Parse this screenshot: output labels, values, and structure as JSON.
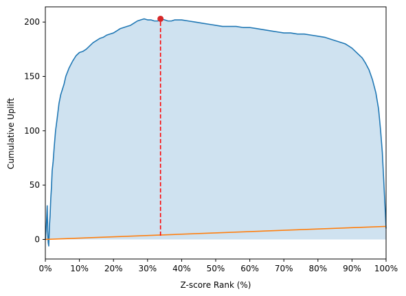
{
  "chart_data": {
    "type": "area",
    "xlabel": "Z-score Rank (%)",
    "ylabel": "Cumulative Uplift",
    "xlim": [
      0,
      100
    ],
    "ylim": [
      -18,
      214
    ],
    "grid": false,
    "x_ticks": [
      0,
      10,
      20,
      30,
      40,
      50,
      60,
      70,
      80,
      90,
      100
    ],
    "x_tick_labels": [
      "0%",
      "10%",
      "20%",
      "30%",
      "40%",
      "50%",
      "60%",
      "70%",
      "80%",
      "90%",
      "100%"
    ],
    "y_ticks": [
      0,
      50,
      100,
      150,
      200
    ],
    "y_tick_labels": [
      "0",
      "50",
      "100",
      "150",
      "200"
    ],
    "series": [
      {
        "color": "#1f77b4",
        "fill_color": "#cfe2f0",
        "points": [
          [
            0,
            0
          ],
          [
            0.2,
            8
          ],
          [
            0.4,
            20
          ],
          [
            0.55,
            31
          ],
          [
            0.7,
            8
          ],
          [
            0.85,
            -3
          ],
          [
            1.0,
            -6
          ],
          [
            1.2,
            12
          ],
          [
            1.4,
            22
          ],
          [
            1.6,
            38
          ],
          [
            1.8,
            48
          ],
          [
            2.0,
            63
          ],
          [
            2.3,
            72
          ],
          [
            2.6,
            85
          ],
          [
            3.0,
            100
          ],
          [
            3.5,
            112
          ],
          [
            4.0,
            125
          ],
          [
            4.5,
            133
          ],
          [
            5.0,
            138
          ],
          [
            5.5,
            143
          ],
          [
            6.0,
            150
          ],
          [
            7.0,
            158
          ],
          [
            8.0,
            164
          ],
          [
            9.0,
            169
          ],
          [
            10.0,
            172
          ],
          [
            11.0,
            173
          ],
          [
            12.0,
            175
          ],
          [
            13.0,
            178
          ],
          [
            14.0,
            181
          ],
          [
            15.0,
            183
          ],
          [
            16.0,
            185
          ],
          [
            17.0,
            186
          ],
          [
            18.0,
            188
          ],
          [
            19.0,
            189
          ],
          [
            20.0,
            190
          ],
          [
            21.0,
            192
          ],
          [
            22.0,
            194
          ],
          [
            23.0,
            195
          ],
          [
            24.0,
            196
          ],
          [
            25.0,
            197
          ],
          [
            26.0,
            199
          ],
          [
            27.0,
            201
          ],
          [
            28.0,
            202
          ],
          [
            29.0,
            203
          ],
          [
            30.0,
            202
          ],
          [
            31.0,
            202
          ],
          [
            32.0,
            201
          ],
          [
            33.0,
            201
          ],
          [
            33.8,
            203
          ],
          [
            35.0,
            202
          ],
          [
            36.0,
            201
          ],
          [
            37.0,
            201
          ],
          [
            38.0,
            202
          ],
          [
            39.0,
            202
          ],
          [
            40.0,
            202
          ],
          [
            42.0,
            201
          ],
          [
            44.0,
            200
          ],
          [
            46.0,
            199
          ],
          [
            48.0,
            198
          ],
          [
            50.0,
            197
          ],
          [
            52.0,
            196
          ],
          [
            54.0,
            196
          ],
          [
            56.0,
            196
          ],
          [
            58.0,
            195
          ],
          [
            60.0,
            195
          ],
          [
            62.0,
            194
          ],
          [
            64.0,
            193
          ],
          [
            66.0,
            192
          ],
          [
            68.0,
            191
          ],
          [
            70.0,
            190
          ],
          [
            72.0,
            190
          ],
          [
            74.0,
            189
          ],
          [
            76.0,
            189
          ],
          [
            78.0,
            188
          ],
          [
            80.0,
            187
          ],
          [
            82.0,
            186
          ],
          [
            84.0,
            184
          ],
          [
            86.0,
            182
          ],
          [
            87.0,
            181
          ],
          [
            88.0,
            180
          ],
          [
            89.0,
            178
          ],
          [
            90.0,
            176
          ],
          [
            91.0,
            173
          ],
          [
            92.0,
            170
          ],
          [
            93.0,
            167
          ],
          [
            94.0,
            162
          ],
          [
            95.0,
            156
          ],
          [
            96.0,
            147
          ],
          [
            97.0,
            135
          ],
          [
            97.8,
            120
          ],
          [
            98.4,
            100
          ],
          [
            98.9,
            80
          ],
          [
            99.3,
            55
          ],
          [
            99.7,
            30
          ],
          [
            100.0,
            10
          ]
        ]
      },
      {
        "color": "#ff7f0e",
        "points": [
          [
            0,
            0
          ],
          [
            100,
            12
          ]
        ]
      }
    ],
    "annotations": {
      "max_point": {
        "x": 33.8,
        "y": 203,
        "color": "#d62728"
      },
      "vline": {
        "x": 33.8,
        "y_from": 3.5,
        "y_to": 203,
        "color": "#ff0000",
        "style": "dashed"
      }
    }
  }
}
